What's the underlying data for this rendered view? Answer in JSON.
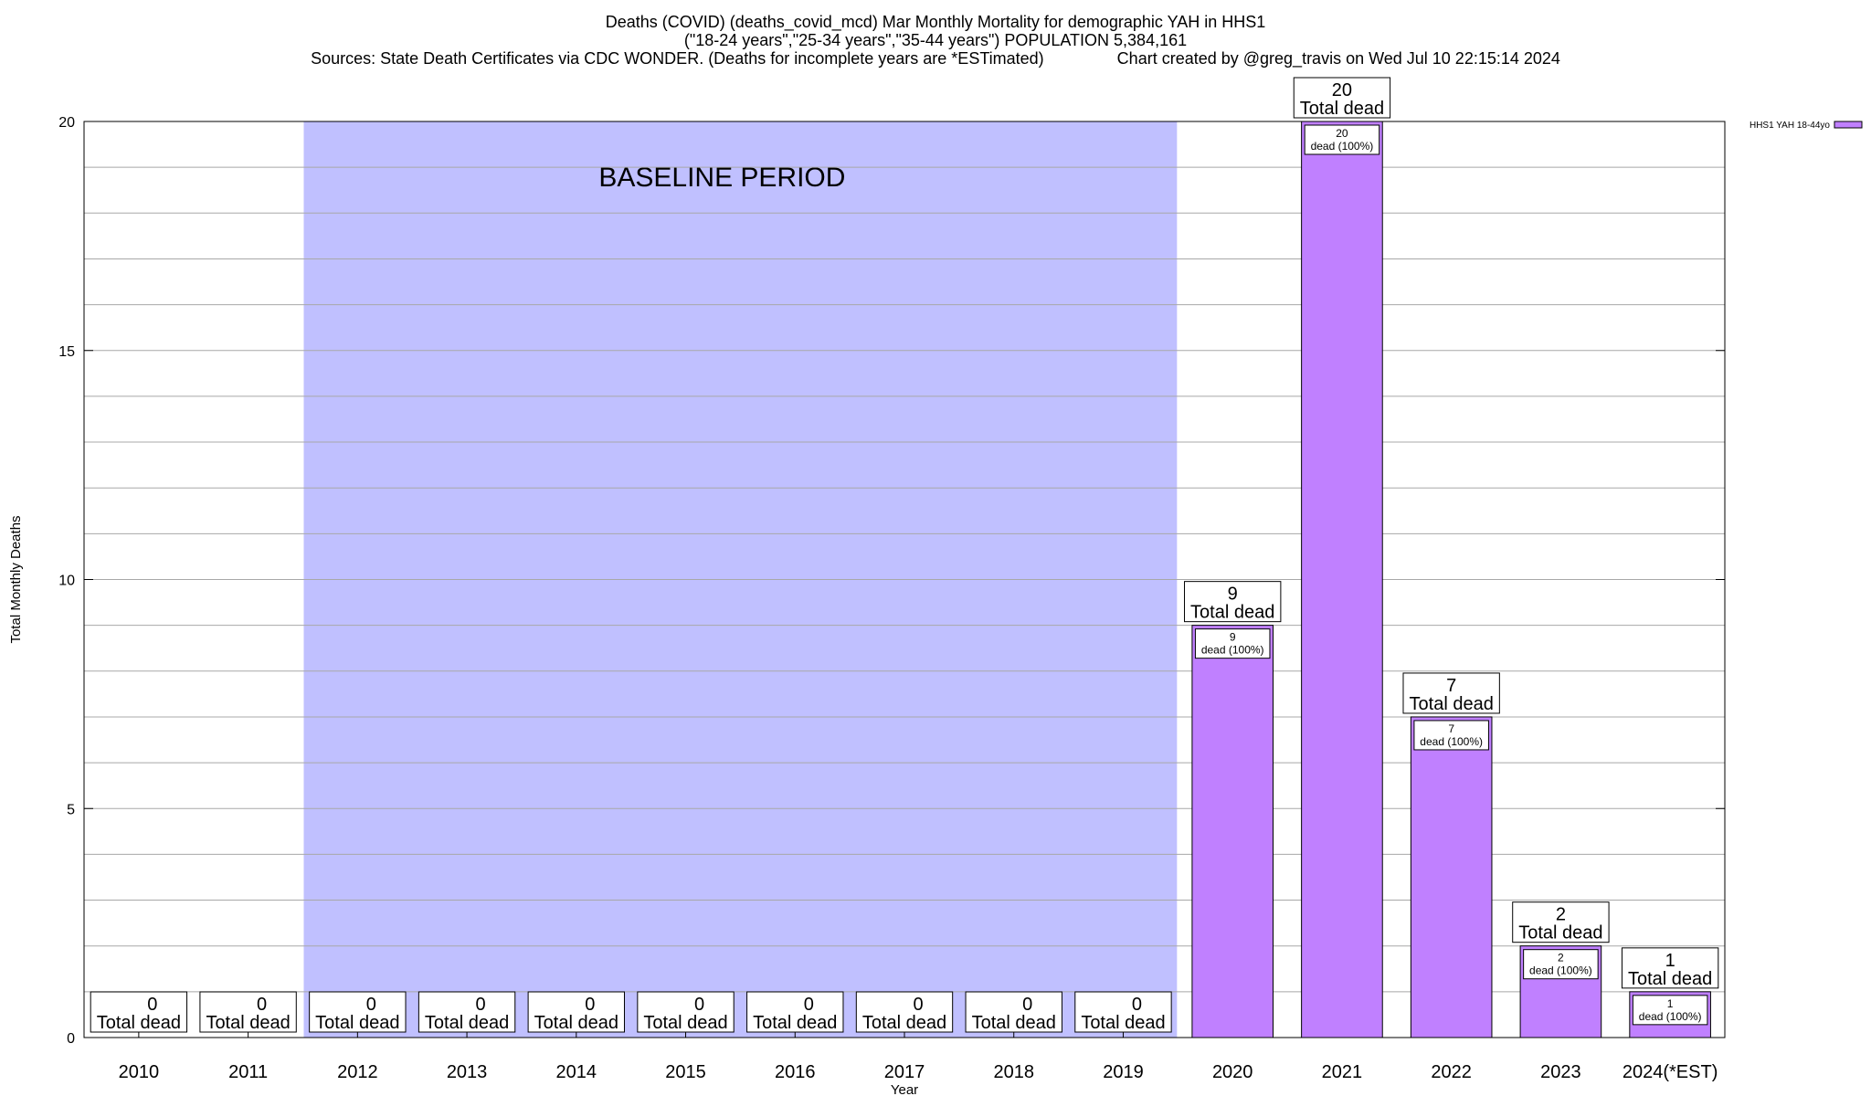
{
  "chart_data": {
    "type": "bar",
    "title_lines": [
      "Deaths (COVID) (deaths_covid_mcd) Mar Monthly Mortality for demographic YAH in HHS1",
      "(\"18-24 years\",\"25-34 years\",\"35-44 years\") POPULATION 5,384,161",
      "Sources: State Death Certificates via CDC WONDER. (Deaths for incomplete years are *ESTimated)                Chart created by @greg_travis on Wed Jul 10 22:15:14 2024"
    ],
    "xlabel": "Year",
    "ylabel": "Total Monthly Deaths",
    "ylim": [
      0,
      20
    ],
    "yticks": [
      0,
      5,
      10,
      15,
      20
    ],
    "grid": true,
    "legend": {
      "position": "top-right",
      "entries": [
        {
          "label": "HHS1 YAH 18-44yo",
          "color": "#c080ff"
        }
      ]
    },
    "baseline": {
      "label": "BASELINE PERIOD",
      "start": "2012",
      "end": "2019",
      "color": "#c0c0ff"
    },
    "categories": [
      "2010",
      "2011",
      "2012",
      "2013",
      "2014",
      "2015",
      "2016",
      "2017",
      "2018",
      "2019",
      "2020",
      "2021",
      "2022",
      "2023",
      "2024(*EST)"
    ],
    "series": [
      {
        "name": "HHS1 YAH 18-44yo",
        "color": "#c080ff",
        "values": [
          0,
          0,
          0,
          0,
          0,
          0,
          0,
          0,
          0,
          0,
          9,
          20,
          7,
          2,
          1
        ]
      }
    ],
    "total_label_suffix": "Total dead",
    "inner_labels": [
      {
        "index": 10,
        "count": "9",
        "text": "dead (100%)"
      },
      {
        "index": 11,
        "count": "20",
        "text": "dead (100%)"
      },
      {
        "index": 12,
        "count": "7",
        "text": "dead (100%)"
      },
      {
        "index": 13,
        "count": "2",
        "text": "dead (100%)"
      },
      {
        "index": 14,
        "count": "1",
        "text": "dead (100%)"
      }
    ]
  }
}
